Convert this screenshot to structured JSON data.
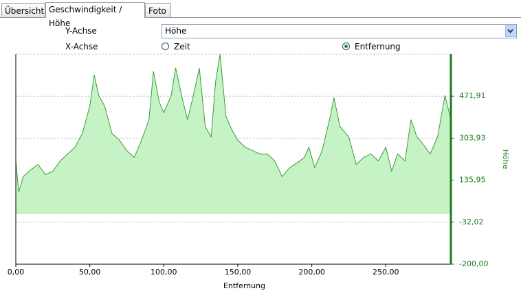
{
  "tabs": [
    "Übersicht",
    "Geschwindigkeit / Höhe",
    "Foto"
  ],
  "form": {
    "y_label": "Y-Achse",
    "y_value": "Höhe",
    "x_label": "X-Achse",
    "x_options": [
      "Zeit",
      "Entfernung"
    ],
    "x_selected": 1
  },
  "chart_data": {
    "type": "area",
    "x_axis_label": "Entfernung",
    "y_axis_label": "Höhe",
    "y_axis_side": "right",
    "x": [
      0,
      2,
      5,
      10,
      15,
      20,
      25,
      30,
      35,
      40,
      45,
      50,
      53,
      56,
      60,
      65,
      70,
      75,
      80,
      85,
      90,
      93,
      97,
      100,
      105,
      108,
      112,
      116,
      120,
      124,
      128,
      132,
      135,
      138,
      142,
      146,
      150,
      155,
      160,
      165,
      170,
      175,
      180,
      185,
      190,
      195,
      198,
      202,
      207,
      212,
      215,
      219,
      225,
      230,
      235,
      240,
      245,
      250,
      254,
      258,
      263,
      267,
      271,
      275,
      280,
      285,
      290,
      294
    ],
    "values": [
      213,
      89,
      150,
      177,
      199,
      158,
      172,
      213,
      241,
      268,
      323,
      433,
      557,
      475,
      433,
      323,
      296,
      254,
      227,
      296,
      378,
      571,
      447,
      406,
      475,
      585,
      475,
      378,
      475,
      585,
      351,
      309,
      530,
      640,
      392,
      337,
      296,
      268,
      254,
      241,
      241,
      213,
      150,
      186,
      205,
      227,
      268,
      186,
      254,
      378,
      466,
      351,
      309,
      199,
      227,
      241,
      213,
      268,
      172,
      241,
      213,
      378,
      309,
      282,
      241,
      309,
      475,
      378
    ],
    "color": "#3a9a3a",
    "fill": "#c6f3c6",
    "axis_color": "#1a7a1a",
    "grid": true,
    "xlim": [
      0,
      294
    ],
    "ylim": [
      -200,
      639.89
    ],
    "xticks": [
      {
        "value": 0,
        "label": "0,00"
      },
      {
        "value": 50,
        "label": "50,00"
      },
      {
        "value": 100,
        "label": "100,00"
      },
      {
        "value": 150,
        "label": "150,00"
      },
      {
        "value": 200,
        "label": "200,00"
      },
      {
        "value": 250,
        "label": "250,00"
      }
    ],
    "yticks": [
      {
        "value": -200,
        "label": "-200,00"
      },
      {
        "value": -32.02,
        "label": "-32,02"
      },
      {
        "value": 135.95,
        "label": "135,95"
      },
      {
        "value": 303.93,
        "label": "303,93"
      },
      {
        "value": 471.91,
        "label": "471,91"
      }
    ]
  }
}
